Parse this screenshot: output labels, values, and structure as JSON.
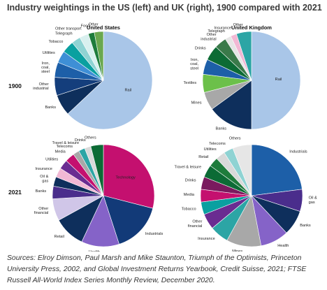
{
  "title": "Industry weightings in the US (left) and UK (right), 1900 compared with 2021",
  "column_headers": [
    "United States",
    "United Kingdom"
  ],
  "row_labels": [
    "1900",
    "2021"
  ],
  "source": "Sources: Elroy Dimson, Paul Marsh and Mike Staunton, Triumph of the Optimists, Princeton University Press, 2002, and Global Investment Returns Yearbook, Credit Suisse, 2021; FTSE Russell All-World Index Series Monthly Review, December 2020.",
  "chart_data": [
    {
      "type": "pie",
      "panel": "United States 1900",
      "labels": [
        "Rail",
        "Banks",
        "Other industrial",
        "Iron, coal, steel",
        "Utilities",
        "Tobacco",
        "Telegraph",
        "Other transport",
        "Food",
        "Other"
      ],
      "values": [
        63,
        7,
        6,
        5,
        4,
        4,
        3,
        3,
        2,
        3
      ],
      "colors": [
        "#a9c6e8",
        "#0e2f5c",
        "#143e7c",
        "#1d5fa8",
        "#3e8fd6",
        "#0aa0a0",
        "#8fd3d3",
        "#d9f0ef",
        "#1e7c3c",
        "#6aa84f"
      ]
    },
    {
      "type": "pie",
      "panel": "United Kingdom 1900",
      "labels": [
        "Rail",
        "Banks",
        "Mines",
        "Textiles",
        "Iron, coal, steel",
        "Drinks",
        "Other industrial",
        "Telegraph",
        "Insurance",
        "Other"
      ],
      "values": [
        50,
        15,
        6,
        6,
        5,
        5,
        4,
        2,
        2,
        5
      ],
      "colors": [
        "#a9c6e8",
        "#0e2f5c",
        "#a8a8a8",
        "#6cc04a",
        "#1d5fa8",
        "#0c6b35",
        "#3a7a4a",
        "#e6e6e6",
        "#f2b8d4",
        "#2ca5a5"
      ]
    },
    {
      "type": "pie",
      "panel": "United States 2021",
      "labels": [
        "Technology",
        "Industrials",
        "Health",
        "Retail",
        "Other financial",
        "Banks",
        "Oil & gas",
        "Insurance",
        "Utilities",
        "Media",
        "Telecoms",
        "Travel & leisure",
        "Drinks",
        "Others"
      ],
      "values": [
        29,
        16,
        12,
        10,
        7,
        4,
        3,
        3,
        3,
        3,
        2,
        2,
        2,
        4
      ],
      "colors": [
        "#c4106f",
        "#123a78",
        "#8563c8",
        "#0e2f5c",
        "#d0c6e8",
        "#4a2d8c",
        "#0e2f5c",
        "#f2b8d4",
        "#6a2c91",
        "#c4106f",
        "#a8a8a8",
        "#2ca5a5",
        "#d9d9d9",
        "#0c6b35"
      ]
    },
    {
      "type": "pie",
      "panel": "United Kingdom 2021",
      "labels": [
        "Industrials",
        "Oil & gas",
        "Banks",
        "Health",
        "Mines",
        "Insurance",
        "Other financial",
        "Tobacco",
        "Media",
        "Drinks",
        "Travel & leisure",
        "Retail",
        "Utilities",
        "Telecoms",
        "Others"
      ],
      "values": [
        23,
        7,
        8,
        9,
        11,
        6,
        5,
        4,
        4,
        4,
        4,
        3,
        3,
        3,
        6
      ],
      "colors": [
        "#1d5fa8",
        "#4a2d8c",
        "#0e2f5c",
        "#8563c8",
        "#a8a8a8",
        "#2ca5a5",
        "#6a2c91",
        "#0aa0a0",
        "#c4106f",
        "#7a1a5e",
        "#0c6b35",
        "#1e7c3c",
        "#d9d9d9",
        "#8fd3d3",
        "#e6e6e6"
      ]
    }
  ]
}
